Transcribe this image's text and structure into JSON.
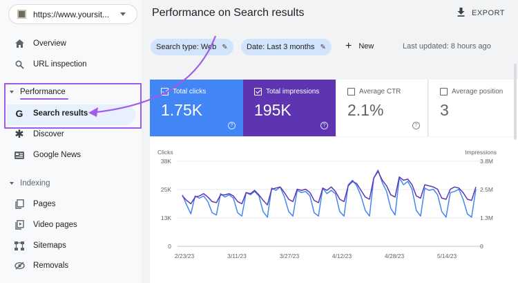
{
  "property": {
    "url": "https://www.yoursit..."
  },
  "sidebar": {
    "items_top": [
      {
        "label": "Overview",
        "icon": "home-icon"
      },
      {
        "label": "URL inspection",
        "icon": "search-icon"
      }
    ],
    "performance_section": "Performance",
    "performance_items": [
      {
        "label": "Search results",
        "icon": "google-g-icon",
        "active": true
      },
      {
        "label": "Discover",
        "icon": "asterisk-icon"
      },
      {
        "label": "Google News",
        "icon": "news-icon"
      }
    ],
    "indexing_section": "Indexing",
    "indexing_items": [
      {
        "label": "Pages",
        "icon": "pages-icon"
      },
      {
        "label": "Video pages",
        "icon": "video-pages-icon"
      },
      {
        "label": "Sitemaps",
        "icon": "sitemap-icon"
      },
      {
        "label": "Removals",
        "icon": "removals-icon"
      }
    ]
  },
  "header": {
    "title": "Performance on Search results",
    "export": "EXPORT"
  },
  "filters": {
    "search_type": "Search type: Web",
    "date": "Date: Last 3 months",
    "new": "New",
    "last_updated": "Last updated: 8 hours ago"
  },
  "metrics": [
    {
      "label": "Total clicks",
      "value": "1.75K",
      "checked": true
    },
    {
      "label": "Total impressions",
      "value": "195K",
      "checked": true
    },
    {
      "label": "Average CTR",
      "value": "2.1%",
      "checked": false
    },
    {
      "label": "Average position",
      "value": "3",
      "checked": false
    }
  ],
  "colors": {
    "clicks": "#4285f4",
    "impressions": "#5e35b1",
    "annotation": "#a25be8"
  },
  "chart_data": {
    "type": "line",
    "left_axis_label": "Clicks",
    "right_axis_label": "Impressions",
    "left_ticks": [
      "38K",
      "25K",
      "13K",
      "0"
    ],
    "right_ticks": [
      "3.8M",
      "2.5M",
      "1.3M",
      "0"
    ],
    "left_ylim": [
      0,
      38000
    ],
    "right_ylim": [
      0,
      3800000
    ],
    "x_tick_labels": [
      "2/23/23",
      "3/11/23",
      "3/27/23",
      "4/12/23",
      "4/28/23",
      "5/14/23"
    ],
    "series": [
      {
        "name": "Total clicks",
        "axis": "left",
        "values": [
          23000,
          18500,
          14500,
          22500,
          21500,
          22500,
          20000,
          15000,
          14000,
          23500,
          22000,
          23000,
          21500,
          15000,
          13500,
          24000,
          23000,
          24500,
          22500,
          15500,
          13000,
          26000,
          25000,
          26500,
          22000,
          15500,
          13500,
          25000,
          24000,
          24500,
          22500,
          15000,
          13500,
          26000,
          23500,
          25000,
          23500,
          15500,
          13500,
          27500,
          29500,
          27000,
          22500,
          16000,
          13500,
          30500,
          34000,
          28500,
          24500,
          17000,
          14000,
          30500,
          27500,
          29000,
          25500,
          16000,
          13500,
          26000,
          25000,
          25500,
          23000,
          15500,
          13000,
          24000,
          24500,
          25500,
          21000,
          14500,
          13000,
          25500
        ]
      },
      {
        "name": "Total impressions",
        "axis": "left",
        "values": [
          22500,
          20500,
          19000,
          22000,
          22500,
          23500,
          22000,
          20000,
          19500,
          23000,
          23000,
          23500,
          22500,
          20000,
          19000,
          24000,
          23500,
          25000,
          23000,
          20500,
          18500,
          25500,
          26000,
          26500,
          24000,
          21000,
          20000,
          25500,
          25000,
          25500,
          24000,
          20500,
          19500,
          26000,
          25000,
          26500,
          24500,
          21000,
          20000,
          27000,
          29000,
          28000,
          25000,
          22000,
          21000,
          30500,
          33500,
          29500,
          27000,
          23000,
          22000,
          31000,
          29500,
          30000,
          27500,
          22500,
          21500,
          27500,
          27000,
          26500,
          25500,
          21500,
          21000,
          25500,
          26500,
          26000,
          24000,
          21000,
          20500,
          26500
        ]
      }
    ],
    "grid": true
  }
}
